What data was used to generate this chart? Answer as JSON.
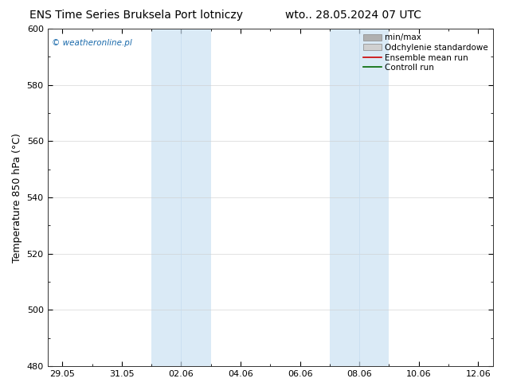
{
  "title_left": "ENS Time Series Bruksela Port lotniczy",
  "title_right": "wto.. 28.05.2024 07 UTC",
  "ylabel": "Temperature 850 hPa (°C)",
  "ylim": [
    480,
    600
  ],
  "yticks": [
    480,
    500,
    520,
    540,
    560,
    580,
    600
  ],
  "x_tick_labels": [
    "29.05",
    "31.05",
    "02.06",
    "04.06",
    "06.06",
    "08.06",
    "10.06",
    "12.06"
  ],
  "x_tick_positions": [
    0,
    2,
    4,
    6,
    8,
    10,
    12,
    14
  ],
  "xlim": [
    -0.5,
    14.5
  ],
  "shade_bands": [
    {
      "xmin": 3.0,
      "xmax": 5.0
    },
    {
      "xmin": 9.0,
      "xmax": 11.0
    }
  ],
  "shade_color": "#daeaf6",
  "shade_divider_color": "#c5ddf0",
  "grid_color": "#cccccc",
  "watermark": "© weatheronline.pl",
  "watermark_color": "#1a6aab",
  "legend_entries": [
    {
      "label": "min/max",
      "color": "#b0b0b0",
      "lw": 1.2
    },
    {
      "label": "Odchylenie standardowe",
      "color": "#d0d0d0",
      "lw": 6
    },
    {
      "label": "Ensemble mean run",
      "color": "#cc0000",
      "lw": 1.2
    },
    {
      "label": "Controll run",
      "color": "#006600",
      "lw": 1.2
    }
  ],
  "bg_color": "#ffffff",
  "plot_bg_color": "#ffffff",
  "title_fontsize": 10,
  "tick_fontsize": 8,
  "ylabel_fontsize": 9,
  "legend_fontsize": 7.5
}
